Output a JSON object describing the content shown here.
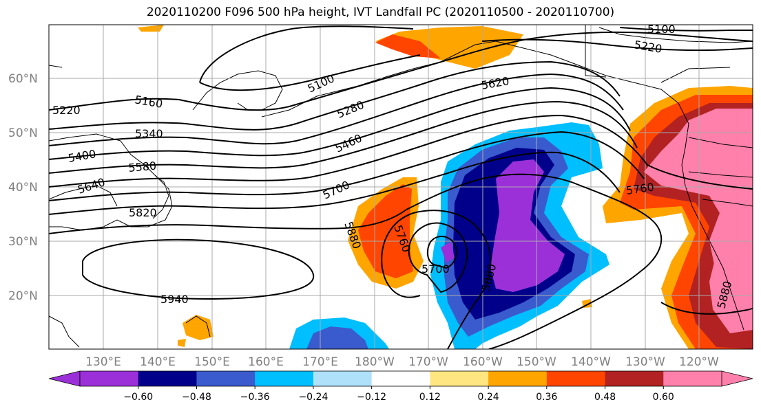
{
  "title": "2020110200 F096 500 hPa height, IVT Landfall PC (2020110500 - 2020110700)",
  "lat_labels": [
    "60°N",
    "50°N",
    "40°N",
    "30°N",
    "20°N"
  ],
  "lon_labels": [
    "130°E",
    "140°E",
    "150°E",
    "160°E",
    "170°E",
    "180°W",
    "170°W",
    "160°W",
    "150°W",
    "140°W",
    "130°W",
    "120°W"
  ],
  "contour_labels": [
    "5100",
    "5220",
    "5220",
    "5160",
    "5100",
    "5280",
    "5620",
    "5340",
    "5400",
    "5460",
    "5580",
    "5640",
    "5700",
    "5760",
    "5820",
    "5880",
    "5760",
    "5700",
    "5880",
    "5940",
    "5880"
  ],
  "colorbar": {
    "colors": [
      "#9b30d9",
      "#00008b",
      "#3a5bcd",
      "#00bfff",
      "#afe1fa",
      "#ffffff",
      "#ffe680",
      "#ffa500",
      "#ff4500",
      "#b22222",
      "#ff80aa"
    ],
    "tick_labels": [
      "−0.60",
      "−0.48",
      "−0.36",
      "−0.24",
      "−0.12",
      "0.12",
      "0.24",
      "0.36",
      "0.48",
      "0.60"
    ]
  }
}
